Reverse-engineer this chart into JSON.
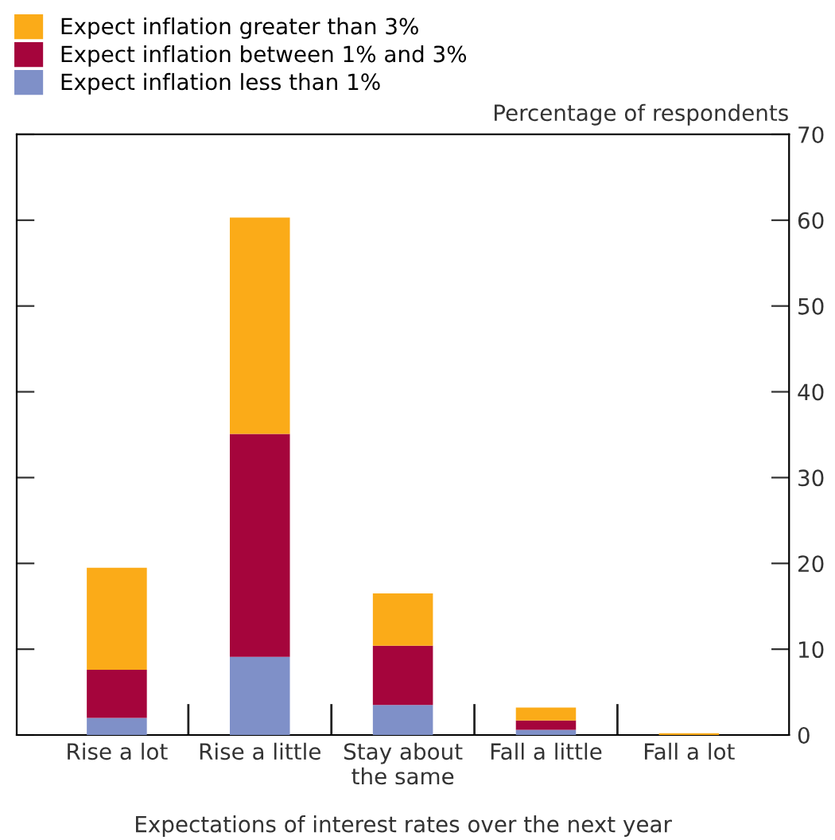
{
  "chart_data": {
    "type": "bar",
    "stacked": true,
    "xlabel": "Expectations of interest rates over the next year",
    "ylabel": "Percentage of respondents",
    "categories": [
      "Rise a lot",
      "Rise a little",
      "Stay about\nthe same",
      "Fall a little",
      "Fall a lot"
    ],
    "series": [
      {
        "name": "Expect inflation less than 1%",
        "color": "#7f90c8",
        "values": [
          2.0,
          9.1,
          3.5,
          0.6,
          0
        ]
      },
      {
        "name": "Expect inflation between 1% and 3%",
        "color": "#a5053c",
        "values": [
          5.6,
          26.0,
          6.9,
          1.1,
          0
        ]
      },
      {
        "name": "Expect inflation greater than 3%",
        "color": "#fbab18",
        "values": [
          11.9,
          25.2,
          6.1,
          1.5,
          0.2
        ]
      }
    ],
    "ylim": [
      0,
      70
    ],
    "yticks": [
      0,
      10,
      20,
      30,
      40,
      50,
      60,
      70
    ],
    "legend": "top left",
    "grid": false
  }
}
